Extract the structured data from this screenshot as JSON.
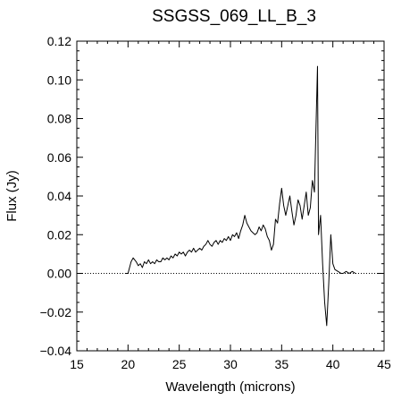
{
  "chart_data": {
    "type": "line",
    "title": "SSGSS_069_LL_B_3",
    "xlabel": "Wavelength (microns)",
    "ylabel": "Flux (Jy)",
    "xlim": [
      15,
      45
    ],
    "ylim": [
      -0.04,
      0.12
    ],
    "xticks": [
      15,
      20,
      25,
      30,
      35,
      40,
      45
    ],
    "xtick_labels": [
      "15",
      "20",
      "25",
      "30",
      "35",
      "40",
      "45"
    ],
    "yticks": [
      -0.04,
      -0.02,
      0.0,
      0.02,
      0.04,
      0.06,
      0.08,
      0.1,
      0.12
    ],
    "ytick_labels": [
      "−0.04",
      "−0.02",
      "0.00",
      "0.02",
      "0.04",
      "0.06",
      "0.08",
      "0.10",
      "0.12"
    ],
    "grid": false,
    "zero_line": {
      "y": 0,
      "style": "dotted"
    },
    "series": [
      {
        "color": "#000000",
        "x": [
          19.7,
          20.0,
          20.3,
          20.5,
          20.8,
          21.0,
          21.2,
          21.4,
          21.6,
          21.8,
          22.0,
          22.2,
          22.4,
          22.6,
          22.8,
          23.0,
          23.2,
          23.4,
          23.6,
          23.8,
          24.0,
          24.2,
          24.4,
          24.6,
          24.8,
          25.0,
          25.2,
          25.4,
          25.6,
          25.8,
          26.0,
          26.2,
          26.4,
          26.6,
          26.8,
          27.0,
          27.2,
          27.4,
          27.6,
          27.8,
          28.0,
          28.2,
          28.4,
          28.6,
          28.8,
          29.0,
          29.2,
          29.4,
          29.6,
          29.8,
          30.0,
          30.2,
          30.4,
          30.6,
          30.8,
          31.0,
          31.2,
          31.4,
          31.6,
          31.8,
          32.0,
          32.2,
          32.4,
          32.6,
          32.8,
          33.0,
          33.2,
          33.4,
          33.6,
          33.8,
          34.0,
          34.2,
          34.4,
          34.6,
          34.8,
          35.0,
          35.2,
          35.4,
          35.6,
          35.8,
          36.0,
          36.2,
          36.4,
          36.6,
          36.8,
          37.0,
          37.2,
          37.4,
          37.6,
          37.8,
          38.0,
          38.2,
          38.35,
          38.5,
          38.6,
          38.8,
          39.0,
          39.2,
          39.4,
          39.6,
          39.8,
          40.0,
          40.2,
          40.5,
          40.8,
          41.0,
          41.3,
          41.6,
          41.9,
          42.2
        ],
        "y": [
          0.0,
          0.0,
          0.006,
          0.008,
          0.006,
          0.004,
          0.005,
          0.003,
          0.006,
          0.005,
          0.007,
          0.005,
          0.006,
          0.005,
          0.007,
          0.006,
          0.006,
          0.008,
          0.007,
          0.008,
          0.007,
          0.009,
          0.008,
          0.01,
          0.009,
          0.011,
          0.01,
          0.011,
          0.009,
          0.011,
          0.012,
          0.011,
          0.013,
          0.011,
          0.012,
          0.013,
          0.012,
          0.014,
          0.015,
          0.017,
          0.015,
          0.014,
          0.016,
          0.017,
          0.015,
          0.017,
          0.016,
          0.018,
          0.017,
          0.019,
          0.017,
          0.02,
          0.019,
          0.021,
          0.018,
          0.022,
          0.025,
          0.03,
          0.026,
          0.024,
          0.022,
          0.021,
          0.02,
          0.021,
          0.024,
          0.022,
          0.025,
          0.023,
          0.019,
          0.017,
          0.012,
          0.015,
          0.028,
          0.026,
          0.036,
          0.044,
          0.035,
          0.03,
          0.035,
          0.04,
          0.032,
          0.025,
          0.03,
          0.038,
          0.035,
          0.028,
          0.035,
          0.042,
          0.03,
          0.034,
          0.048,
          0.042,
          0.075,
          0.107,
          0.02,
          0.03,
          0.005,
          -0.015,
          -0.027,
          -0.005,
          0.02,
          0.005,
          0.002,
          0.001,
          0.0,
          0.0,
          0.001,
          0.0,
          0.001,
          0.0
        ]
      }
    ]
  }
}
